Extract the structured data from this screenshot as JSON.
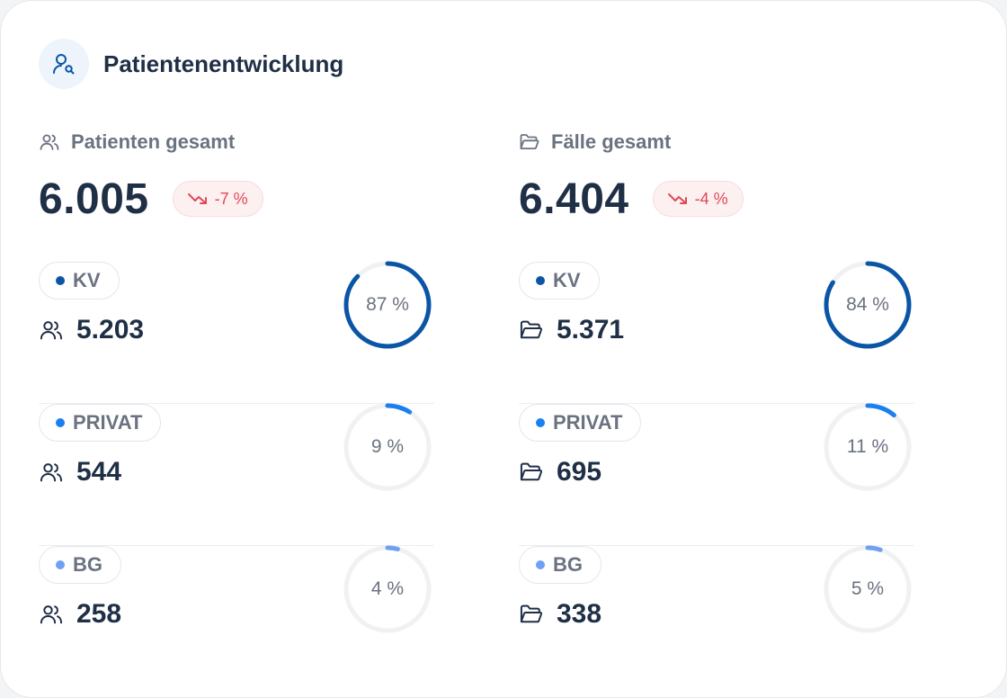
{
  "header": {
    "title": "Patientenentwicklung",
    "icon": "user-search-icon"
  },
  "colors": {
    "kv": "#0b55a6",
    "privat": "#1a7ff0",
    "bg": "#6ea0f4",
    "track": "#f0f1f3",
    "trend_down": "#e04a56"
  },
  "columns": [
    {
      "label": "Patienten gesamt",
      "icon": "users-icon",
      "total": "6.005",
      "trend": "-7 %",
      "trend_icon": "trending-down-icon",
      "rows": [
        {
          "label": "KV",
          "value": "5.203",
          "percent_text": "87 %",
          "percent": 87,
          "color": "#0b55a6"
        },
        {
          "label": "PRIVAT",
          "value": "544",
          "percent_text": "9 %",
          "percent": 9,
          "color": "#1a7ff0"
        },
        {
          "label": "BG",
          "value": "258",
          "percent_text": "4 %",
          "percent": 4,
          "color": "#6ea0f4"
        }
      ]
    },
    {
      "label": "Fälle gesamt",
      "icon": "folder-icon",
      "total": "6.404",
      "trend": "-4 %",
      "trend_icon": "trending-down-icon",
      "rows": [
        {
          "label": "KV",
          "value": "5.371",
          "percent_text": "84 %",
          "percent": 84,
          "color": "#0b55a6"
        },
        {
          "label": "PRIVAT",
          "value": "695",
          "percent_text": "11 %",
          "percent": 11,
          "color": "#1a7ff0"
        },
        {
          "label": "BG",
          "value": "338",
          "percent_text": "5 %",
          "percent": 5,
          "color": "#6ea0f4"
        }
      ]
    }
  ]
}
